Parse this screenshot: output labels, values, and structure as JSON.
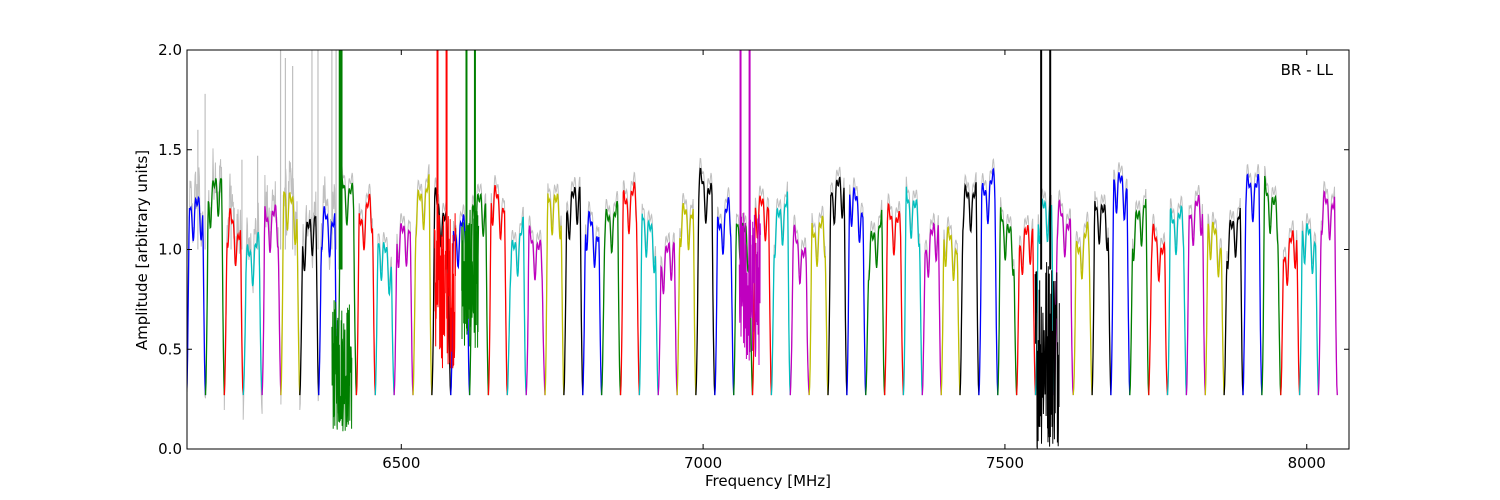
{
  "chart_data": {
    "type": "line",
    "title": "",
    "xlabel": "Frequency [MHz]",
    "ylabel": "Amplitude [arbitrary units]",
    "xlim": [
      6145,
      8070
    ],
    "ylim": [
      0.0,
      2.0
    ],
    "x_ticks": [
      6500,
      7000,
      7500,
      8000
    ],
    "y_ticks": [
      0.0,
      0.5,
      1.0,
      1.5,
      2.0
    ],
    "x_tick_labels": [
      "6500",
      "7000",
      "7500",
      "8000"
    ],
    "y_tick_labels": [
      "0.0",
      "0.5",
      "1.0",
      "1.5",
      "2.0"
    ],
    "annotation": "BR - LL",
    "grid": false,
    "legend": "none",
    "band_width_mhz": 31.25,
    "band_count": 61,
    "first_band_center_mhz": 6160,
    "color_cycle": [
      "#0000ff",
      "#007f00",
      "#ff0000",
      "#00bfbf",
      "#bf00bf",
      "#bfbf00",
      "#000000"
    ],
    "background_series_color": "#bfbfbf",
    "rfi_spikes": [
      {
        "x": 6398,
        "color": "#007f00"
      },
      {
        "x": 6401,
        "color": "#007f00"
      },
      {
        "x": 6560,
        "color": "#ff0000"
      },
      {
        "x": 6575,
        "color": "#ff0000"
      },
      {
        "x": 6608,
        "color": "#007f00"
      },
      {
        "x": 6622,
        "color": "#007f00"
      },
      {
        "x": 7062,
        "color": "#bf00bf"
      },
      {
        "x": 7077,
        "color": "#bf00bf"
      },
      {
        "x": 7560,
        "color": "#000000"
      },
      {
        "x": 7575,
        "color": "#000000"
      }
    ],
    "noisy_regions": [
      {
        "x_start": 6385,
        "x_end": 6418,
        "color": "#007f00",
        "low": 0.08,
        "high": 0.75
      },
      {
        "x_start": 6555,
        "x_end": 6590,
        "color": "#ff0000",
        "low": 0.4,
        "high": 1.2
      },
      {
        "x_start": 6600,
        "x_end": 6628,
        "color": "#007f00",
        "low": 0.5,
        "high": 1.2
      },
      {
        "x_start": 7060,
        "x_end": 7095,
        "color": "#bf00bf",
        "low": 0.4,
        "high": 1.2
      },
      {
        "x_start": 7550,
        "x_end": 7590,
        "color": "#000000",
        "low": 0.0,
        "high": 1.0
      }
    ]
  }
}
